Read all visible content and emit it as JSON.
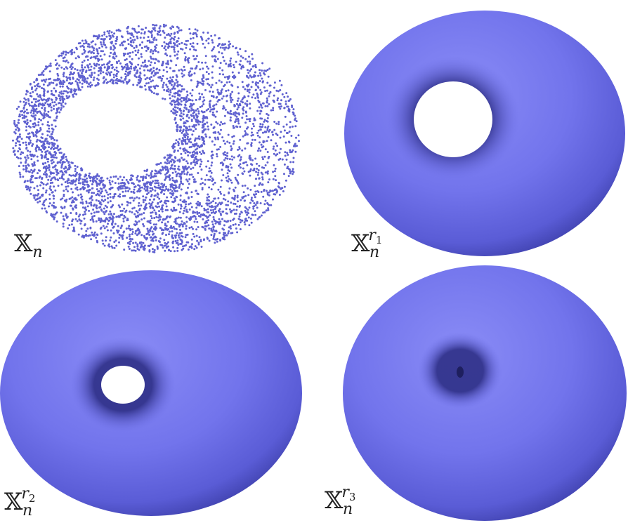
{
  "panels": [
    {
      "label": {
        "base": "𝕏",
        "sub": "n"
      }
    },
    {
      "label": {
        "base": "𝕏",
        "sub": "n",
        "sup": "r",
        "sup_sub": "1"
      }
    },
    {
      "label": {
        "base": "𝕏",
        "sub": "n",
        "sup": "r",
        "sup_sub": "2"
      }
    },
    {
      "label": {
        "base": "𝕏",
        "sub": "n",
        "sup": "r",
        "sup_sub": "3"
      }
    }
  ]
}
